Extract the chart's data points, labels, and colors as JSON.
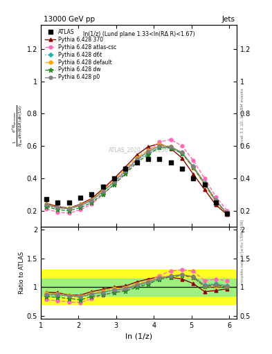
{
  "title_left": "13000 GeV pp",
  "title_right": "Jets",
  "panel_title": "ln(1/z) (Lund plane 1.33<ln(RΔ R)<1.67)",
  "ylabel_main": "$\\frac{1}{N_{\\rm jets}}\\frac{d^2 N_{\\rm emissions}}{d\\ln(R/\\Delta R)\\,d\\ln(1/z)}$",
  "ylabel_ratio": "Ratio to ATLAS",
  "xlabel": "ln (1/z)",
  "right_label": "Rivet 3.1.10, ≥ 2.8M events",
  "right_label2": "mcplots.cern.ch [arXiv:1306.3436]",
  "watermark": "ATLAS_2020_I1790256",
  "xlim": [
    1.0,
    6.2
  ],
  "ylim_main": [
    0.1,
    1.35
  ],
  "ylim_ratio": [
    0.45,
    2.05
  ],
  "x_atlas": [
    1.15,
    1.45,
    1.75,
    2.05,
    2.35,
    2.65,
    2.95,
    3.25,
    3.55,
    3.85,
    4.15,
    4.45,
    4.75,
    5.05,
    5.35,
    5.65,
    5.95
  ],
  "y_atlas": [
    0.27,
    0.25,
    0.25,
    0.28,
    0.3,
    0.35,
    0.4,
    0.46,
    0.5,
    0.52,
    0.52,
    0.5,
    0.46,
    0.4,
    0.36,
    0.25,
    0.18
  ],
  "x_py370": [
    1.15,
    1.45,
    1.75,
    2.05,
    2.35,
    2.65,
    2.95,
    3.25,
    3.55,
    3.85,
    4.15,
    4.45,
    4.75,
    5.05,
    5.35,
    5.65,
    5.95
  ],
  "y_py370": [
    0.245,
    0.225,
    0.215,
    0.24,
    0.275,
    0.335,
    0.4,
    0.47,
    0.545,
    0.595,
    0.615,
    0.585,
    0.525,
    0.425,
    0.33,
    0.235,
    0.175
  ],
  "x_pyatlas": [
    1.15,
    1.45,
    1.75,
    2.05,
    2.35,
    2.65,
    2.95,
    3.25,
    3.55,
    3.85,
    4.15,
    4.45,
    4.75,
    5.05,
    5.35,
    5.65,
    5.95
  ],
  "y_pyatlas": [
    0.21,
    0.19,
    0.185,
    0.205,
    0.24,
    0.3,
    0.365,
    0.435,
    0.51,
    0.57,
    0.625,
    0.64,
    0.6,
    0.51,
    0.4,
    0.285,
    0.2
  ],
  "x_pyd6t": [
    1.15,
    1.45,
    1.75,
    2.05,
    2.35,
    2.65,
    2.95,
    3.25,
    3.55,
    3.85,
    4.15,
    4.45,
    4.75,
    5.05,
    5.35,
    5.65,
    5.95
  ],
  "y_pyd6t": [
    0.23,
    0.215,
    0.21,
    0.23,
    0.26,
    0.315,
    0.375,
    0.44,
    0.51,
    0.555,
    0.59,
    0.59,
    0.555,
    0.475,
    0.375,
    0.265,
    0.185
  ],
  "x_pydef": [
    1.15,
    1.45,
    1.75,
    2.05,
    2.35,
    2.65,
    2.95,
    3.25,
    3.55,
    3.85,
    4.15,
    4.45,
    4.75,
    5.05,
    5.35,
    5.65,
    5.95
  ],
  "y_pydef": [
    0.24,
    0.22,
    0.215,
    0.235,
    0.268,
    0.326,
    0.39,
    0.458,
    0.528,
    0.574,
    0.607,
    0.598,
    0.556,
    0.463,
    0.36,
    0.252,
    0.18
  ],
  "x_pydw": [
    1.15,
    1.45,
    1.75,
    2.05,
    2.35,
    2.65,
    2.95,
    3.25,
    3.55,
    3.85,
    4.15,
    4.45,
    4.75,
    5.05,
    5.35,
    5.65,
    5.95
  ],
  "y_pydw": [
    0.225,
    0.205,
    0.2,
    0.218,
    0.25,
    0.303,
    0.362,
    0.428,
    0.498,
    0.547,
    0.59,
    0.588,
    0.553,
    0.467,
    0.364,
    0.258,
    0.18
  ],
  "x_pyp0": [
    1.15,
    1.45,
    1.75,
    2.05,
    2.35,
    2.65,
    2.95,
    3.25,
    3.55,
    3.85,
    4.15,
    4.45,
    4.75,
    5.05,
    5.35,
    5.65,
    5.95
  ],
  "y_pyp0": [
    0.235,
    0.218,
    0.212,
    0.232,
    0.263,
    0.318,
    0.38,
    0.447,
    0.518,
    0.565,
    0.6,
    0.595,
    0.56,
    0.472,
    0.37,
    0.262,
    0.183
  ],
  "r_py370": [
    0.91,
    0.9,
    0.86,
    0.86,
    0.92,
    0.96,
    1.0,
    1.02,
    1.09,
    1.14,
    1.18,
    1.17,
    1.14,
    1.06,
    0.92,
    0.94,
    0.97
  ],
  "r_pyatlas": [
    0.78,
    0.76,
    0.74,
    0.73,
    0.8,
    0.86,
    0.91,
    0.95,
    1.02,
    1.1,
    1.2,
    1.28,
    1.3,
    1.275,
    1.11,
    1.14,
    1.11
  ],
  "r_pyd6t": [
    0.85,
    0.86,
    0.84,
    0.82,
    0.87,
    0.9,
    0.94,
    0.957,
    1.02,
    1.067,
    1.135,
    1.18,
    1.207,
    1.188,
    1.042,
    1.06,
    1.03
  ],
  "r_pydef": [
    0.89,
    0.88,
    0.86,
    0.84,
    0.893,
    0.931,
    0.975,
    0.995,
    1.056,
    1.104,
    1.167,
    1.196,
    1.209,
    1.158,
    1.0,
    1.008,
    1.0
  ],
  "r_pydw": [
    0.833,
    0.82,
    0.8,
    0.778,
    0.833,
    0.866,
    0.905,
    0.93,
    0.996,
    1.052,
    1.135,
    1.176,
    1.202,
    1.168,
    1.011,
    1.032,
    1.0
  ],
  "r_pyp0": [
    0.87,
    0.872,
    0.848,
    0.829,
    0.877,
    0.909,
    0.95,
    0.972,
    1.036,
    1.087,
    1.154,
    1.19,
    1.217,
    1.18,
    1.028,
    1.048,
    1.017
  ],
  "color_atlas": "#000000",
  "color_py370": "#8B0000",
  "color_pyatlas": "#FF69B4",
  "color_pyd6t": "#20B2AA",
  "color_pydef": "#FFA500",
  "color_pydw": "#228B22",
  "color_pyp0": "#808080",
  "color_yellow": "#FFFF00",
  "color_green": "#90EE90"
}
